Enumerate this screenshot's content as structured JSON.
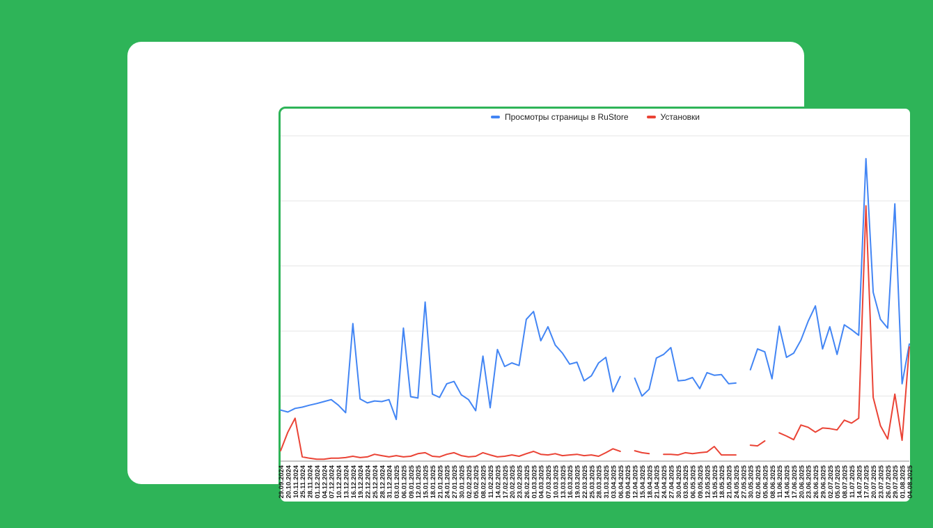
{
  "page": {
    "background_color": "#2eb458",
    "card_color": "#ffffff",
    "panel_border_color": "#2eb458",
    "gridline_color": "#e6e6e6",
    "axis_line_color": "#8b8b8b"
  },
  "chart_data": {
    "type": "line",
    "title": "",
    "legend_position": "top-center",
    "grid": true,
    "y_axis": {
      "labels_visible": false,
      "units": "relative (axis unlabeled, top gridline = 100)",
      "range": [
        0,
        108
      ],
      "gridline_values": [
        20,
        40,
        60,
        80,
        100
      ]
    },
    "x_labels": [
      "29.09.2024",
      "20.10.2024",
      "10.11.2024",
      "25.11.2024",
      "28.11.2024",
      "01.12.2024",
      "04.12.2024",
      "07.12.2024",
      "10.12.2024",
      "13.12.2024",
      "16.12.2024",
      "19.12.2024",
      "22.12.2024",
      "25.12.2024",
      "28.12.2024",
      "31.12.2024",
      "03.01.2025",
      "06.01.2025",
      "09.01.2025",
      "12.01.2025",
      "15.01.2025",
      "18.01.2025",
      "21.01.2025",
      "24.01.2025",
      "27.01.2025",
      "30.01.2025",
      "02.02.2025",
      "05.02.2025",
      "08.02.2025",
      "11.02.2025",
      "14.02.2025",
      "17.02.2025",
      "20.02.2025",
      "23.02.2025",
      "26.02.2025",
      "01.03.2025",
      "04.03.2025",
      "07.03.2025",
      "10.03.2025",
      "13.03.2025",
      "16.03.2025",
      "19.03.2025",
      "22.03.2025",
      "25.03.2025",
      "28.03.2025",
      "31.03.2025",
      "03.04.2025",
      "06.04.2025",
      "09.04.2025",
      "12.04.2025",
      "15.04.2025",
      "18.04.2025",
      "21.04.2025",
      "24.04.2025",
      "27.04.2025",
      "30.04.2025",
      "03.05.2025",
      "06.05.2025",
      "09.05.2025",
      "12.05.2025",
      "15.05.2025",
      "18.05.2025",
      "21.05.2025",
      "24.05.2025",
      "27.05.2025",
      "30.05.2025",
      "02.06.2025",
      "05.06.2025",
      "08.06.2025",
      "11.06.2025",
      "14.06.2025",
      "17.06.2025",
      "20.06.2025",
      "23.06.2025",
      "26.06.2025",
      "29.06.2025",
      "02.07.2025",
      "05.07.2025",
      "08.07.2025",
      "11.07.2025",
      "14.07.2025",
      "17.07.2025",
      "20.07.2025",
      "23.07.2025",
      "26.07.2025",
      "29.07.2025",
      "01.08.2025",
      "04.08.2025"
    ],
    "series": [
      {
        "name": "Просмотры страницы в RuStore",
        "color": "#4285f4",
        "values": [
          15.7,
          15.1,
          16.2,
          16.6,
          17.2,
          17.7,
          18.3,
          18.9,
          17.2,
          14.9,
          42.3,
          19.1,
          17.9,
          18.5,
          18.3,
          18.9,
          12.8,
          40.9,
          19.8,
          19.4,
          48.9,
          20.6,
          19.6,
          23.8,
          24.5,
          20.4,
          18.9,
          15.5,
          32.3,
          16.4,
          34.3,
          29.1,
          30.2,
          29.4,
          43.6,
          46.0,
          37.0,
          41.3,
          35.7,
          33.2,
          29.8,
          30.4,
          24.7,
          26.2,
          30.2,
          31.9,
          21.3,
          26.0,
          null,
          25.5,
          20.0,
          22.1,
          31.7,
          32.8,
          34.9,
          24.7,
          24.9,
          25.7,
          22.3,
          27.2,
          26.4,
          26.6,
          23.8,
          24.0,
          null,
          28.1,
          34.5,
          33.6,
          25.3,
          41.5,
          31.9,
          33.2,
          37.2,
          43.0,
          47.7,
          34.5,
          41.3,
          32.8,
          41.9,
          40.4,
          38.7,
          93.0,
          51.9,
          43.6,
          40.9,
          79.1,
          23.8,
          36.0
        ]
      },
      {
        "name": "Установки",
        "color": "#ea4335",
        "values": [
          3.2,
          8.9,
          13.2,
          1.3,
          0.9,
          0.6,
          0.6,
          0.9,
          0.9,
          1.1,
          1.5,
          1.1,
          1.3,
          2.1,
          1.7,
          1.3,
          1.7,
          1.3,
          1.5,
          2.3,
          2.6,
          1.5,
          1.3,
          2.1,
          2.6,
          1.7,
          1.3,
          1.5,
          2.6,
          1.9,
          1.3,
          1.5,
          1.9,
          1.5,
          2.3,
          3.0,
          2.1,
          1.9,
          2.3,
          1.7,
          1.9,
          2.1,
          1.7,
          1.9,
          1.5,
          2.6,
          3.8,
          3.0,
          null,
          3.2,
          2.6,
          2.3,
          null,
          2.1,
          2.1,
          1.9,
          2.6,
          2.3,
          2.6,
          2.8,
          4.5,
          1.9,
          1.9,
          1.9,
          null,
          4.9,
          4.7,
          6.2,
          null,
          8.7,
          7.7,
          6.6,
          11.1,
          10.4,
          8.9,
          10.2,
          10.0,
          9.6,
          12.6,
          11.7,
          13.2,
          78.5,
          19.6,
          10.9,
          6.8,
          20.6,
          6.4,
          35.1
        ]
      }
    ]
  }
}
